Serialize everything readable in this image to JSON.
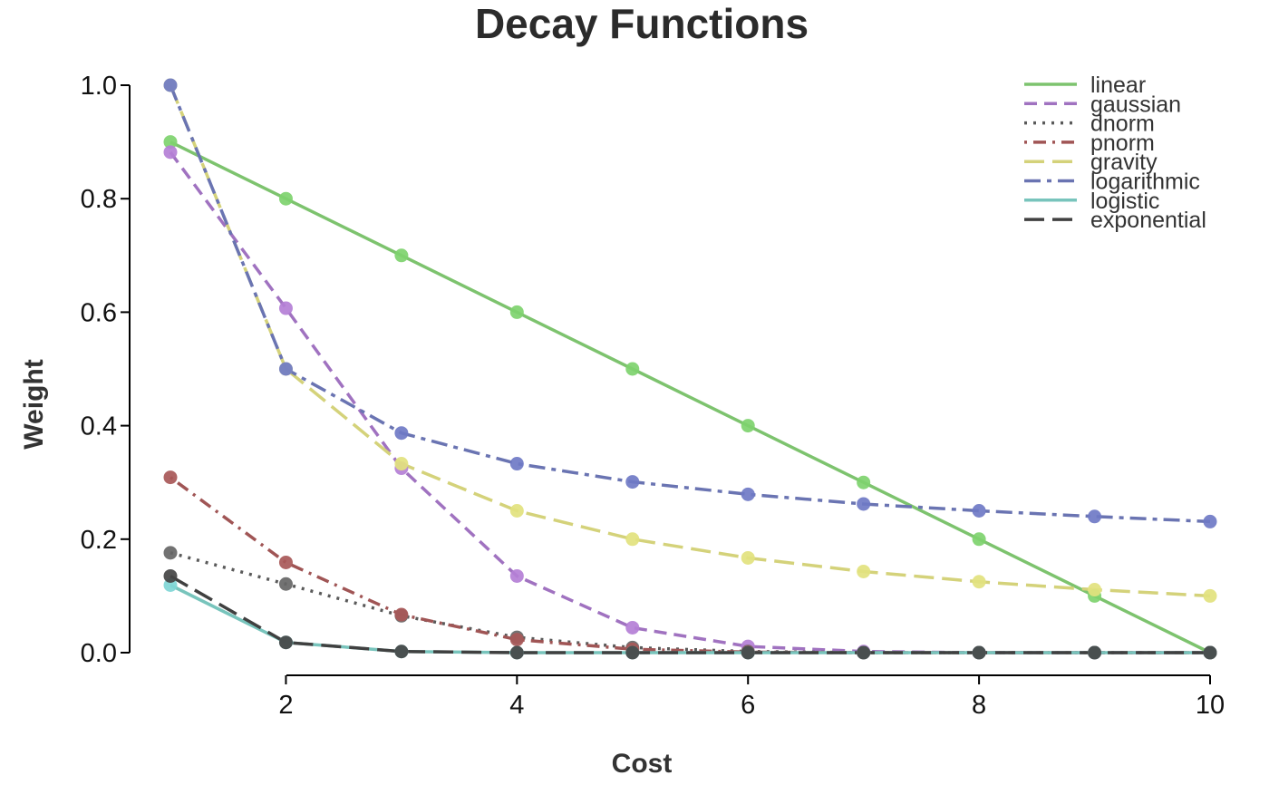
{
  "chart_data": {
    "type": "line",
    "title": "Decay Functions",
    "xlabel": "Cost",
    "ylabel": "Weight",
    "xlim": [
      1,
      10
    ],
    "ylim": [
      0,
      1
    ],
    "x_ticks": [
      2,
      4,
      6,
      8,
      10
    ],
    "y_ticks": [
      "0.0",
      "0.2",
      "0.4",
      "0.6",
      "0.8",
      "1.0"
    ],
    "grid": false,
    "legend_position": "top-right",
    "x": [
      1,
      2,
      3,
      4,
      5,
      6,
      7,
      8,
      9,
      10
    ],
    "series": [
      {
        "name": "linear",
        "style": "solid",
        "color": "#7dc36e",
        "marker_color": "#7ed36e",
        "values": [
          0.9,
          0.8,
          0.7,
          0.6,
          0.5,
          0.4,
          0.3,
          0.2,
          0.1,
          0.0
        ]
      },
      {
        "name": "gaussian",
        "style": "dashed",
        "color": "#a072c0",
        "marker_color": "#b47fd6",
        "values": [
          0.882,
          0.607,
          0.325,
          0.135,
          0.044,
          0.011,
          0.002,
          0.0,
          0.0,
          0.0
        ]
      },
      {
        "name": "dnorm",
        "style": "dotted",
        "color": "#5a5a5a",
        "marker_color": "#666666",
        "values": [
          0.176,
          0.121,
          0.065,
          0.027,
          0.009,
          0.002,
          0.0,
          0.0,
          0.0,
          0.0
        ]
      },
      {
        "name": "pnorm",
        "style": "dotdash",
        "color": "#a05555",
        "marker_color": "#a85858",
        "values": [
          0.309,
          0.159,
          0.067,
          0.023,
          0.006,
          0.001,
          0.0,
          0.0,
          0.0,
          0.0
        ]
      },
      {
        "name": "gravity",
        "style": "longdash",
        "color": "#d4d27a",
        "marker_color": "#e2e27e",
        "values": [
          1.0,
          0.5,
          0.333,
          0.25,
          0.2,
          0.167,
          0.143,
          0.125,
          0.111,
          0.1
        ]
      },
      {
        "name": "logarithmic",
        "style": "twodash",
        "color": "#6a74b2",
        "marker_color": "#6f79c6",
        "values": [
          1.0,
          0.5,
          0.387,
          0.333,
          0.301,
          0.279,
          0.262,
          0.25,
          0.24,
          0.231
        ]
      },
      {
        "name": "logistic",
        "style": "solid",
        "color": "#78c4bc",
        "marker_color": "#7fd6d6",
        "values": [
          0.119,
          0.018,
          0.002,
          0.0,
          0.0,
          0.0,
          0.0,
          0.0,
          0.0,
          0.0
        ]
      },
      {
        "name": "exponential",
        "style": "longdash",
        "color": "#404040",
        "marker_color": "#444444",
        "values": [
          0.135,
          0.018,
          0.002,
          0.0,
          0.0,
          0.0,
          0.0,
          0.0,
          0.0,
          0.0
        ]
      }
    ]
  }
}
